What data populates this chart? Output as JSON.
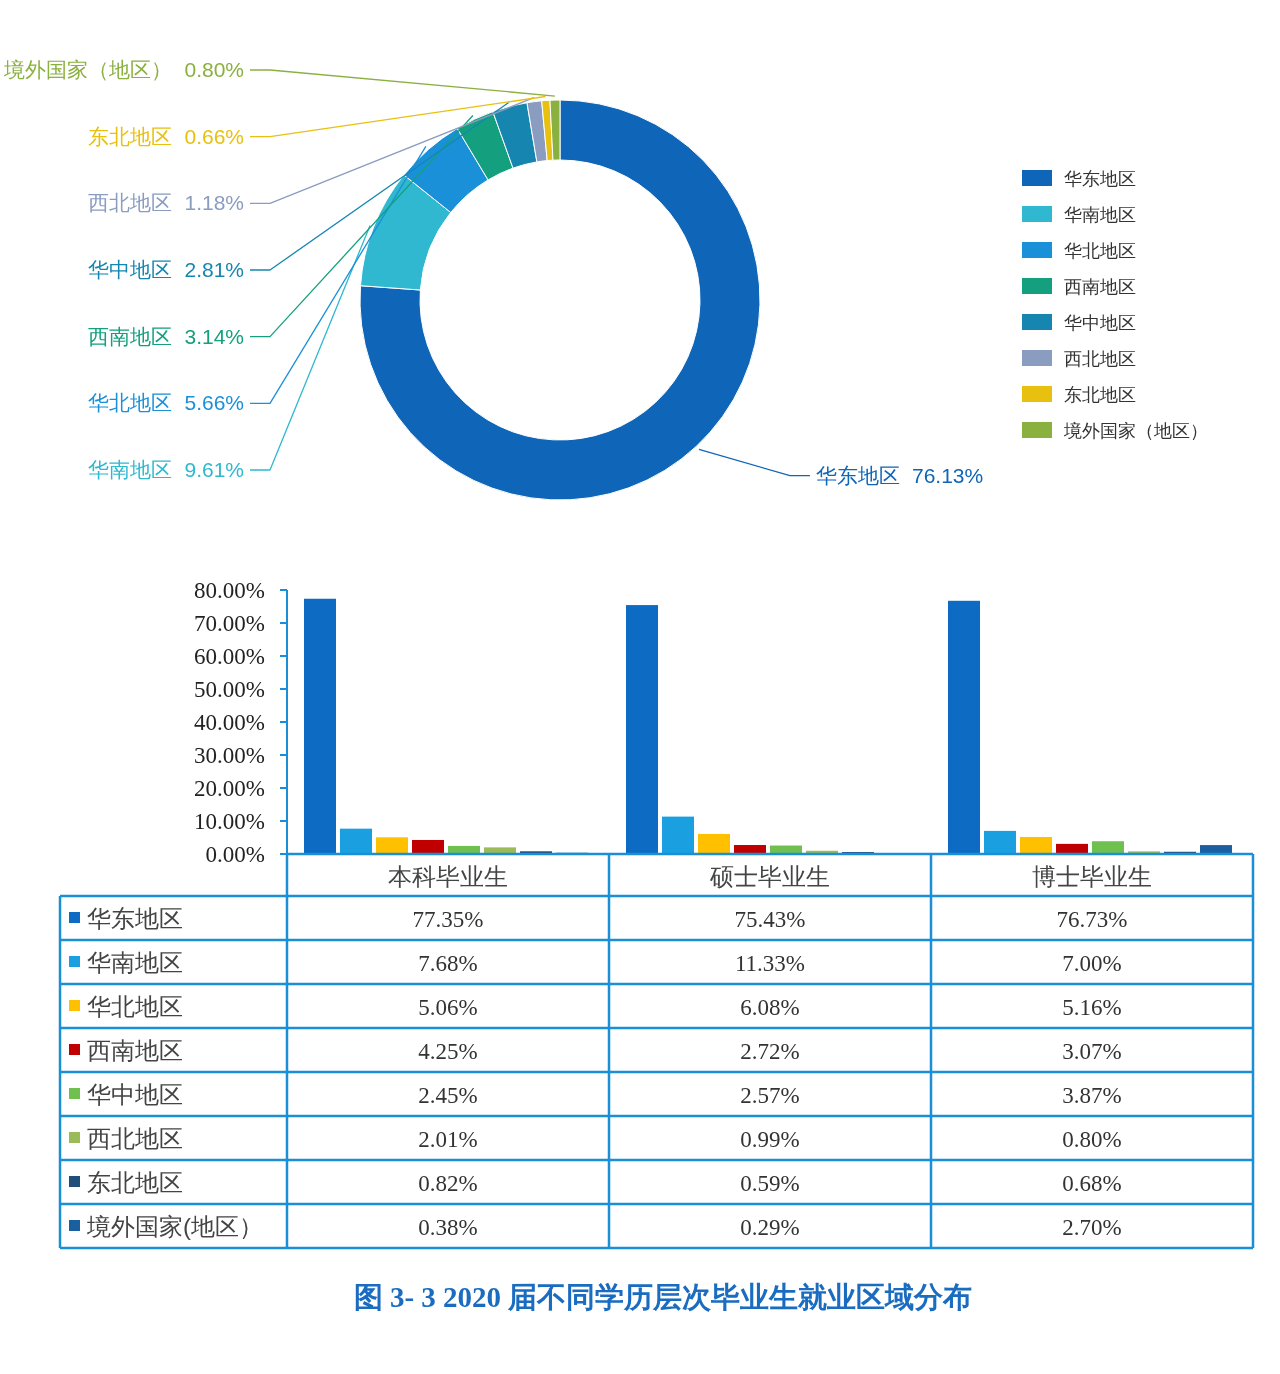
{
  "chart_data": [
    {
      "type": "donut",
      "categories": [
        "华东地区",
        "华南地区",
        "华北地区",
        "西南地区",
        "华中地区",
        "西北地区",
        "东北地区",
        "境外国家（地区）"
      ],
      "values": [
        76.13,
        9.61,
        5.66,
        3.14,
        2.81,
        1.18,
        0.66,
        0.8
      ],
      "value_labels": [
        "76.13%",
        "9.61%",
        "5.66%",
        "3.14%",
        "2.81%",
        "1.18%",
        "0.66%",
        "0.80%"
      ],
      "colors": [
        "#0f66b8",
        "#2fb8d0",
        "#1a90d8",
        "#14a07e",
        "#1686b0",
        "#8a9cc0",
        "#e8c010",
        "#8ab040"
      ],
      "legend": "right"
    },
    {
      "type": "bar",
      "title": "图 3- 3    2020 届不同学历层次毕业生就业区域分布",
      "categories": [
        "本科毕业生",
        "硕士毕业生",
        "博士毕业生"
      ],
      "series": [
        {
          "name": "华东地区",
          "color": "#0e6bc4",
          "values": [
            77.35,
            75.43,
            76.73
          ],
          "value_labels": [
            "77.35%",
            "75.43%",
            "76.73%"
          ]
        },
        {
          "name": "华南地区",
          "color": "#1aa0e0",
          "values": [
            7.68,
            11.33,
            7.0
          ],
          "value_labels": [
            "7.68%",
            "11.33%",
            "7.00%"
          ]
        },
        {
          "name": "华北地区",
          "color": "#ffc000",
          "values": [
            5.06,
            6.08,
            5.16
          ],
          "value_labels": [
            "5.06%",
            "6.08%",
            "5.16%"
          ]
        },
        {
          "name": "西南地区",
          "color": "#c00000",
          "values": [
            4.25,
            2.72,
            3.07
          ],
          "value_labels": [
            "4.25%",
            "2.72%",
            "3.07%"
          ]
        },
        {
          "name": "华中地区",
          "color": "#70c050",
          "values": [
            2.45,
            2.57,
            3.87
          ],
          "value_labels": [
            "2.45%",
            "2.57%",
            "3.87%"
          ]
        },
        {
          "name": "西北地区",
          "color": "#9bbb59",
          "values": [
            2.01,
            0.99,
            0.8
          ],
          "value_labels": [
            "2.01%",
            "0.99%",
            "0.80%"
          ]
        },
        {
          "name": "东北地区",
          "color": "#1f4e79",
          "values": [
            0.82,
            0.59,
            0.68
          ],
          "value_labels": [
            "0.82%",
            "0.59%",
            "0.68%"
          ]
        },
        {
          "name": "境外国家(地区）",
          "color": "#1a5fa0",
          "values": [
            0.38,
            0.29,
            2.7
          ],
          "value_labels": [
            "0.38%",
            "0.29%",
            "2.70%"
          ]
        }
      ],
      "ylim": [
        0,
        80
      ],
      "yticks": [
        {
          "value": 0,
          "label": "0.00%"
        },
        {
          "value": 10,
          "label": "10.00%"
        },
        {
          "value": 20,
          "label": "20.00%"
        },
        {
          "value": 30,
          "label": "30.00%"
        },
        {
          "value": 40,
          "label": "40.00%"
        },
        {
          "value": 50,
          "label": "50.00%"
        },
        {
          "value": 60,
          "label": "60.00%"
        },
        {
          "value": 70,
          "label": "70.00%"
        },
        {
          "value": 80,
          "label": "80.00%"
        }
      ],
      "legend": "bottom left",
      "grid": false
    }
  ]
}
